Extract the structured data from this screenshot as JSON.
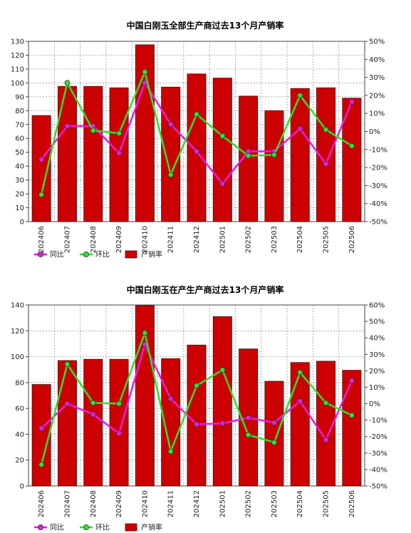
{
  "chart_data": [
    {
      "type": "bar",
      "title": "中国白刚玉全部生产商过去13个月产销率",
      "categories": [
        "202406",
        "202407",
        "202408",
        "202409",
        "202410",
        "202411",
        "202412",
        "202501",
        "202502",
        "202503",
        "202504",
        "202505",
        "202506"
      ],
      "y_left": {
        "range": [
          0,
          130
        ],
        "ticks": [
          "0",
          "10",
          "20",
          "30",
          "40",
          "50",
          "60",
          "70",
          "80",
          "90",
          "100",
          "110",
          "120",
          "130"
        ]
      },
      "y_right": {
        "range": [
          -50,
          50
        ],
        "ticks": [
          "-50%",
          "-40%",
          "-30%",
          "-20%",
          "-10%",
          "0%",
          "10%",
          "20%",
          "30%",
          "40%",
          "50%"
        ]
      },
      "grid": true,
      "legend_position": "bottom-left",
      "series": [
        {
          "name": "产销率",
          "kind": "bar",
          "axis": "left",
          "color": "#cc0000",
          "values": [
            76.5,
            97.5,
            97.5,
            96.5,
            127.5,
            97,
            106.5,
            103.5,
            90.5,
            80,
            96,
            96.5,
            89
          ]
        },
        {
          "name": "同比",
          "kind": "line",
          "axis": "right",
          "color": "#e81ce0",
          "values": [
            -15.5,
            3,
            3,
            -12,
            27,
            4,
            -11,
            -29,
            -11,
            -11,
            1.5,
            -18,
            16.5
          ]
        },
        {
          "name": "环比",
          "kind": "line",
          "axis": "right",
          "color": "#2ee02e",
          "values": [
            -35,
            27,
            0.5,
            -1,
            33,
            -24,
            9.5,
            -2.5,
            -13.5,
            -13,
            20,
            1,
            -8
          ]
        }
      ]
    },
    {
      "type": "bar",
      "title": "中国白刚玉在产生产商过去13个月产销率",
      "categories": [
        "202406",
        "202407",
        "202408",
        "202409",
        "202410",
        "202411",
        "202412",
        "202501",
        "202502",
        "202503",
        "202504",
        "202505",
        "202506"
      ],
      "y_left": {
        "range": [
          0,
          140
        ],
        "ticks": [
          "0",
          "20",
          "40",
          "60",
          "80",
          "100",
          "120",
          "140"
        ]
      },
      "y_right": {
        "range": [
          -50,
          60
        ],
        "ticks": [
          "-50%",
          "-40%",
          "-30%",
          "-20%",
          "-10%",
          "0%",
          "10%",
          "20%",
          "30%",
          "40%",
          "50%",
          "60%"
        ]
      },
      "grid": true,
      "legend_position": "bottom-left",
      "series": [
        {
          "name": "产销率",
          "kind": "bar",
          "axis": "left",
          "color": "#cc0000",
          "values": [
            78.5,
            97,
            98,
            98,
            139.5,
            98.5,
            109,
            131,
            106,
            81,
            95.5,
            96.5,
            89.5
          ]
        },
        {
          "name": "同比",
          "kind": "line",
          "axis": "right",
          "color": "#e81ce0",
          "values": [
            -15,
            0,
            -6.5,
            -18,
            36,
            3,
            -12.5,
            -12,
            -8.5,
            -11.5,
            1.5,
            -22,
            14
          ]
        },
        {
          "name": "环比",
          "kind": "line",
          "axis": "right",
          "color": "#2ee02e",
          "values": [
            -37,
            24,
            0.5,
            0,
            43,
            -29,
            11,
            20.5,
            -19,
            -23.5,
            19,
            0.5,
            -7
          ]
        }
      ]
    }
  ]
}
